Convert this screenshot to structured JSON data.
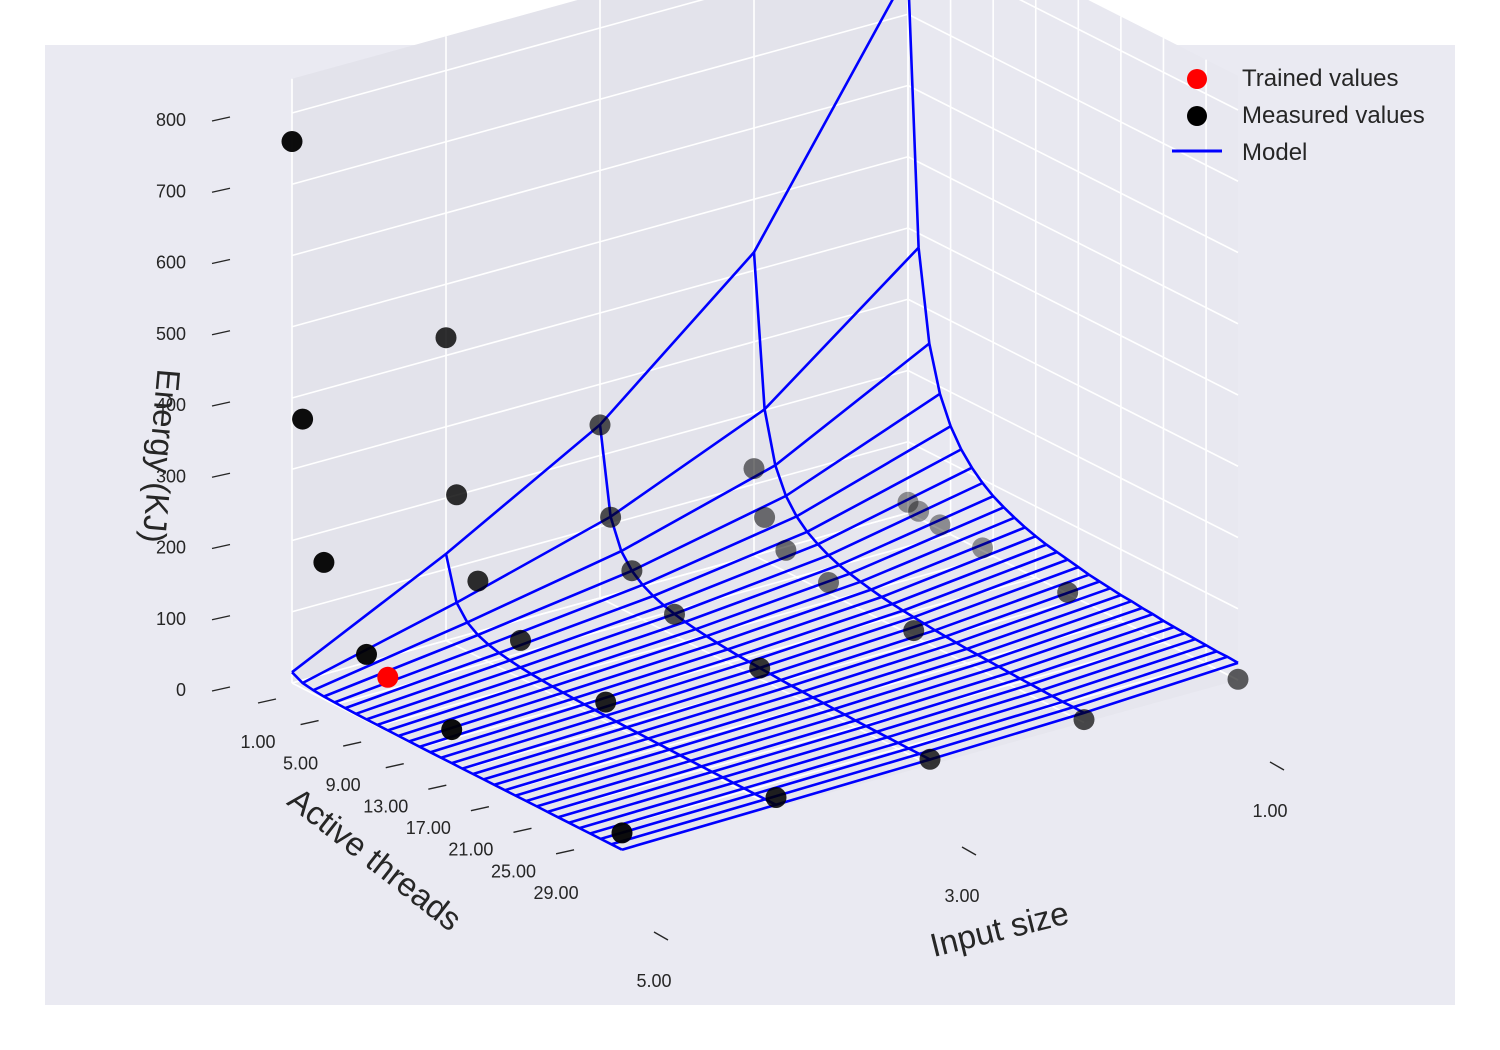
{
  "chart_data": {
    "type": "scatter",
    "projection": "3d-surface-wireframe",
    "xlabel": "Input size",
    "ylabel": "Active threads",
    "zlabel": "Energy (KJ)",
    "x_ticks": [
      "1.00",
      "3.00",
      "5.00"
    ],
    "y_ticks": [
      "1.00",
      "5.00",
      "9.00",
      "13.00",
      "17.00",
      "21.00",
      "25.00",
      "29.00"
    ],
    "z_ticks": [
      "0",
      "100",
      "200",
      "300",
      "400",
      "500",
      "600",
      "700",
      "800"
    ],
    "xlim": [
      1,
      5
    ],
    "ylim": [
      1,
      32
    ],
    "zlim": [
      0,
      800
    ],
    "grid": true,
    "legend_position": "top-right",
    "legend": [
      {
        "label": "Trained values",
        "marker": "dot",
        "color": "#ff0000"
      },
      {
        "label": "Measured values",
        "marker": "dot",
        "color": "#000000"
      },
      {
        "label": "Model",
        "marker": "line",
        "color": "#0000ff"
      }
    ],
    "colors": {
      "trained": "#ff0000",
      "measured": "#000000",
      "model": "#0000ff",
      "pane": "#e5e5ee",
      "background": "#eaeaf2"
    },
    "input_sizes": [
      1,
      2,
      3,
      4,
      5
    ],
    "model_threads": [
      1,
      2,
      3,
      4,
      5,
      6,
      7,
      8,
      9,
      10,
      11,
      12,
      13,
      14,
      15,
      16,
      17,
      18,
      19,
      20,
      21,
      22,
      23,
      24,
      25,
      26,
      27,
      28,
      29,
      30,
      31,
      32
    ],
    "model_base_energy": [
      760,
      380,
      253,
      190,
      152,
      127,
      109,
      95,
      84,
      76,
      69,
      63,
      58,
      54,
      51,
      48,
      45,
      42,
      40,
      38,
      36,
      35,
      33,
      32,
      30,
      29,
      28,
      27,
      26,
      25,
      25,
      24
    ],
    "model_size_factor": [
      1.0,
      0.56,
      0.32,
      0.16,
      0.02
    ],
    "measured_values": [
      {
        "input_size": 5,
        "threads": 1,
        "energy": 760
      },
      {
        "input_size": 5,
        "threads": 2,
        "energy": 378
      },
      {
        "input_size": 5,
        "threads": 4,
        "energy": 192
      },
      {
        "input_size": 5,
        "threads": 8,
        "energy": 93
      },
      {
        "input_size": 5,
        "threads": 16,
        "energy": 48
      },
      {
        "input_size": 5,
        "threads": 32,
        "energy": 24
      },
      {
        "input_size": 4,
        "threads": 1,
        "energy": 425
      },
      {
        "input_size": 4,
        "threads": 2,
        "energy": 212
      },
      {
        "input_size": 4,
        "threads": 4,
        "energy": 106
      },
      {
        "input_size": 4,
        "threads": 8,
        "energy": 53
      },
      {
        "input_size": 4,
        "threads": 16,
        "energy": 27
      },
      {
        "input_size": 4,
        "threads": 32,
        "energy": 14
      },
      {
        "input_size": 3,
        "threads": 1,
        "energy": 243
      },
      {
        "input_size": 3,
        "threads": 2,
        "energy": 121
      },
      {
        "input_size": 3,
        "threads": 4,
        "energy": 61
      },
      {
        "input_size": 3,
        "threads": 8,
        "energy": 30
      },
      {
        "input_size": 3,
        "threads": 16,
        "energy": 15
      },
      {
        "input_size": 3,
        "threads": 32,
        "energy": 8
      },
      {
        "input_size": 2,
        "threads": 1,
        "energy": 122
      },
      {
        "input_size": 2,
        "threads": 2,
        "energy": 61
      },
      {
        "input_size": 2,
        "threads": 4,
        "energy": 30
      },
      {
        "input_size": 2,
        "threads": 8,
        "energy": 15
      },
      {
        "input_size": 2,
        "threads": 16,
        "energy": 8
      },
      {
        "input_size": 2,
        "threads": 32,
        "energy": 4
      },
      {
        "input_size": 1,
        "threads": 1,
        "energy": 15
      },
      {
        "input_size": 1,
        "threads": 2,
        "energy": 10
      },
      {
        "input_size": 1,
        "threads": 4,
        "energy": 6
      },
      {
        "input_size": 1,
        "threads": 8,
        "energy": 4
      },
      {
        "input_size": 1,
        "threads": 16,
        "energy": 2
      },
      {
        "input_size": 1,
        "threads": 32,
        "energy": 1
      }
    ],
    "trained_values": [
      {
        "input_size": 5,
        "threads": 10,
        "energy": 76
      }
    ]
  }
}
